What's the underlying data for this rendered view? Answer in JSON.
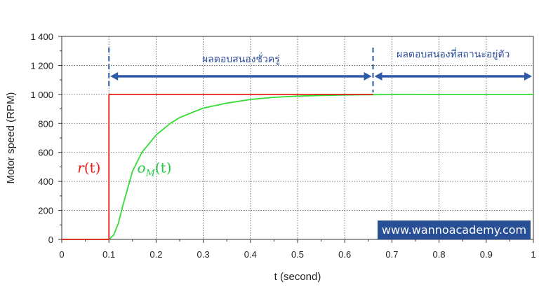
{
  "chart_data": {
    "type": "line",
    "xlabel": "t (second)",
    "ylabel": "Motor speed (RPM)",
    "xlim": [
      0,
      1
    ],
    "ylim": [
      0,
      1400
    ],
    "x_ticks": [
      "0",
      "0.1",
      "0.2",
      "0.3",
      "0.4",
      "0.5",
      "0.6",
      "0.7",
      "0.8",
      "0.9",
      "1"
    ],
    "y_ticks": [
      "0",
      "200",
      "400",
      "600",
      "800",
      "1 000",
      "1 200",
      "1 400"
    ],
    "grid": true,
    "series": [
      {
        "name": "r(t)",
        "color": "#e8201c",
        "x": [
          0,
          0.1,
          0.1,
          0.66
        ],
        "y": [
          0,
          0,
          1000,
          1000
        ]
      },
      {
        "name": "o_M(t)",
        "color": "#33dd33",
        "x": [
          0,
          0.1,
          0.11,
          0.12,
          0.13,
          0.15,
          0.17,
          0.2,
          0.23,
          0.25,
          0.28,
          0.3,
          0.35,
          0.4,
          0.45,
          0.5,
          0.55,
          0.6,
          0.65,
          0.7,
          0.8,
          0.9,
          1.0
        ],
        "y": [
          0,
          0,
          30,
          110,
          240,
          470,
          600,
          720,
          800,
          840,
          880,
          905,
          940,
          965,
          980,
          988,
          993,
          996,
          998,
          999,
          1000,
          1000,
          1000
        ]
      }
    ],
    "annotations": {
      "transient": "ผลตอบสนองชั่วครู่",
      "steady_state": "ผลตอบสนองที่สถานะอยู่ตัว",
      "r_label_base": "r",
      "r_label_arg": "(t)",
      "o_label_base": "o",
      "o_label_sub": "M",
      "o_label_arg": "(t)",
      "boundaries_t": [
        0.1,
        0.66
      ]
    }
  },
  "watermark": "www.wannoacademy.com"
}
